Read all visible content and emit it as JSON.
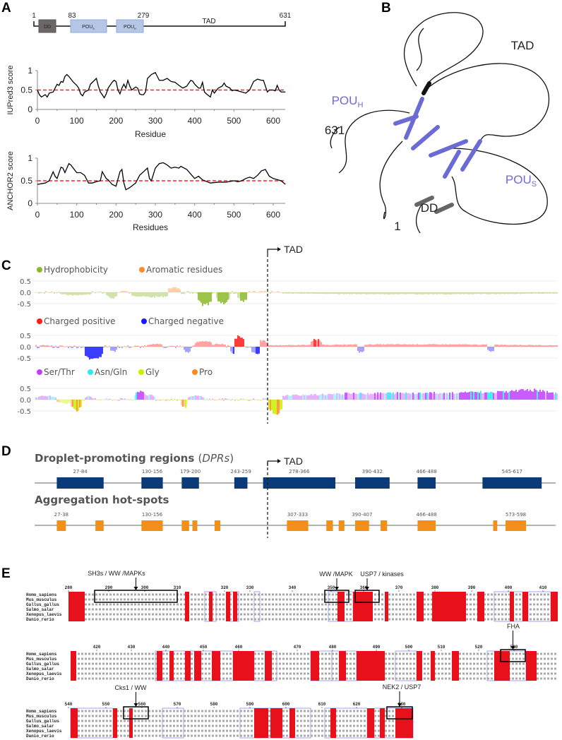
{
  "panels": {
    "A": "A",
    "B": "B",
    "C": "C",
    "D": "D",
    "E": "E"
  },
  "domain_map": {
    "positions": {
      "start": "1",
      "pous_start": "83",
      "pouh_end": "279",
      "end": "631"
    },
    "dd": "DD",
    "pous": {
      "main": "POU",
      "sub": "S"
    },
    "pouh": {
      "main": "POU",
      "sub": "H"
    },
    "tad": "TAD",
    "colors": {
      "dd": "#6b6767",
      "pou": "#b4c7e7"
    }
  },
  "chart_data": [
    {
      "type": "line",
      "ylabel": "IUPred3 score",
      "xlabel": "Residue",
      "xlim": [
        0,
        631
      ],
      "ylim": [
        0,
        1
      ],
      "xticks": [
        "0",
        "100",
        "200",
        "300",
        "400",
        "500",
        "600"
      ],
      "yticks": [
        "1",
        "0.5",
        "0"
      ],
      "threshold": 0.5,
      "threshold_color": "#ff2020",
      "x": [
        0,
        5,
        10,
        20,
        25,
        30,
        40,
        50,
        55,
        60,
        65,
        70,
        75,
        80,
        90,
        100,
        105,
        110,
        115,
        120,
        130,
        135,
        140,
        150,
        155,
        160,
        165,
        170,
        175,
        180,
        190,
        195,
        200,
        205,
        210,
        215,
        220,
        225,
        230,
        235,
        240,
        250,
        255,
        260,
        265,
        270,
        275,
        280,
        290,
        300,
        305,
        310,
        320,
        330,
        340,
        350,
        360,
        370,
        380,
        390,
        395,
        400,
        410,
        415,
        420,
        425,
        430,
        440,
        445,
        450,
        460,
        470,
        475,
        480,
        490,
        495,
        500,
        510,
        520,
        530,
        540,
        550,
        560,
        570,
        575,
        580,
        585,
        590,
        600,
        605,
        610,
        615,
        620,
        631
      ],
      "y": [
        0.5,
        0.38,
        0.32,
        0.38,
        0.32,
        0.42,
        0.45,
        0.65,
        0.62,
        0.72,
        0.7,
        0.85,
        0.9,
        0.85,
        0.72,
        0.62,
        0.55,
        0.4,
        0.35,
        0.45,
        0.5,
        0.65,
        0.7,
        0.8,
        0.6,
        0.45,
        0.38,
        0.3,
        0.4,
        0.55,
        0.7,
        0.75,
        0.72,
        0.5,
        0.4,
        0.55,
        0.65,
        0.55,
        0.75,
        0.6,
        0.5,
        0.58,
        0.55,
        0.4,
        0.38,
        0.38,
        0.45,
        0.8,
        0.9,
        0.95,
        0.85,
        0.75,
        0.75,
        0.8,
        0.72,
        0.7,
        0.62,
        0.55,
        0.6,
        0.75,
        0.73,
        0.65,
        0.55,
        0.55,
        0.7,
        0.45,
        0.4,
        0.32,
        0.5,
        0.42,
        0.55,
        0.6,
        0.68,
        0.6,
        0.55,
        0.48,
        0.5,
        0.48,
        0.45,
        0.42,
        0.5,
        0.72,
        0.78,
        0.75,
        0.75,
        0.6,
        0.45,
        0.5,
        0.5,
        0.48,
        0.62,
        0.5,
        0.45,
        0.45
      ]
    },
    {
      "type": "line",
      "ylabel": "ANCHOR2 score",
      "xlabel": "Residues",
      "xlim": [
        0,
        631
      ],
      "ylim": [
        0,
        1
      ],
      "xticks": [
        "0",
        "100",
        "200",
        "300",
        "400",
        "500",
        "600"
      ],
      "yticks": [
        "1",
        "0.5",
        "0"
      ],
      "threshold": 0.5,
      "threshold_color": "#ff2020",
      "x": [
        0,
        20,
        30,
        40,
        45,
        50,
        60,
        65,
        70,
        80,
        85,
        100,
        110,
        120,
        130,
        140,
        150,
        160,
        165,
        175,
        180,
        190,
        200,
        210,
        215,
        220,
        225,
        235,
        250,
        260,
        270,
        280,
        285,
        290,
        300,
        310,
        320,
        330,
        340,
        350,
        360,
        365,
        380,
        400,
        410,
        420,
        440,
        460,
        480,
        500,
        510,
        520,
        530,
        540,
        550,
        560,
        570,
        580,
        590,
        600,
        620,
        631
      ],
      "y": [
        0.42,
        0.45,
        0.5,
        0.7,
        0.6,
        0.55,
        0.8,
        0.78,
        0.68,
        0.88,
        0.85,
        0.68,
        0.68,
        0.62,
        0.45,
        0.45,
        0.48,
        0.5,
        0.7,
        0.55,
        0.52,
        0.42,
        0.38,
        0.7,
        0.75,
        0.45,
        0.3,
        0.35,
        0.45,
        0.62,
        0.7,
        0.78,
        0.55,
        0.5,
        0.78,
        0.88,
        0.9,
        0.85,
        0.78,
        0.8,
        0.78,
        0.82,
        0.75,
        0.55,
        0.6,
        0.52,
        0.45,
        0.47,
        0.47,
        0.5,
        0.48,
        0.5,
        0.55,
        0.58,
        0.55,
        0.62,
        0.72,
        0.75,
        0.6,
        0.55,
        0.5,
        0.42
      ]
    },
    {
      "type": "bar",
      "tracks": [
        {
          "legend": [
            {
              "name": "Hydrophobicity",
              "color": "#8cba2a"
            },
            {
              "name": "Aromatic residues",
              "color": "#ff8a2a"
            }
          ],
          "yticks": [
            "0.5",
            "0.0",
            "-0.5"
          ]
        },
        {
          "legend": [
            {
              "name": "Charged positive",
              "color": "#ff1a1a"
            },
            {
              "name": "Charged negative",
              "color": "#1a1aff"
            }
          ],
          "yticks": [
            "0.5",
            "0.0",
            "-0.5"
          ]
        },
        {
          "legend": [
            {
              "name": "Ser/Thr",
              "color": "#c040ff"
            },
            {
              "name": "Asn/Gln",
              "color": "#30e8f0"
            },
            {
              "name": "Gly",
              "color": "#c8f000"
            },
            {
              "name": "Pro",
              "color": "#ff8a20"
            }
          ],
          "yticks": [
            "0.5",
            "0.0",
            "-0.5"
          ]
        }
      ],
      "tad_label": "TAD"
    },
    {
      "type": "range",
      "dpr_title": "Droplet-promoting regions ",
      "dpr_title_italic": "DPRs",
      "dpr_color": "#0b3a78",
      "dprs": [
        {
          "label": "27-84",
          "start": 27,
          "end": 84
        },
        {
          "label": "130-156",
          "start": 130,
          "end": 156
        },
        {
          "label": "179-200",
          "start": 179,
          "end": 200
        },
        {
          "label": "243-259",
          "start": 243,
          "end": 259
        },
        {
          "label": "278-366",
          "start": 278,
          "end": 366
        },
        {
          "label": "390-432",
          "start": 390,
          "end": 432
        },
        {
          "label": "466-488",
          "start": 466,
          "end": 488
        },
        {
          "label": "545-617",
          "start": 545,
          "end": 617
        }
      ],
      "agg_title": "Aggregation hot-spots",
      "agg_color": "#f0901a",
      "hotspots": [
        {
          "label": "27-38",
          "start": 27,
          "end": 38
        },
        {
          "start": 74,
          "end": 84
        },
        {
          "label": "130-156",
          "start": 130,
          "end": 156
        },
        {
          "start": 179,
          "end": 188
        },
        {
          "start": 192,
          "end": 198
        },
        {
          "start": 219,
          "end": 226
        },
        {
          "label": "307-333",
          "start": 307,
          "end": 333
        },
        {
          "start": 355,
          "end": 363
        },
        {
          "start": 370,
          "end": 377
        },
        {
          "label": "390-407",
          "start": 390,
          "end": 407
        },
        {
          "start": 421,
          "end": 429
        },
        {
          "label": "466-488",
          "start": 466,
          "end": 488
        },
        {
          "start": 558,
          "end": 563
        },
        {
          "label": "573-598",
          "start": 573,
          "end": 598
        }
      ],
      "tad_label": "TAD"
    }
  ],
  "structure": {
    "tad": "TAD",
    "pouh": {
      "main": "POU",
      "sub": "H"
    },
    "pous": {
      "main": "POU",
      "sub": "S"
    },
    "dd": "DD",
    "n_term": "1",
    "c_term": "631",
    "helix_color": "#6b6bd6"
  },
  "alignment": {
    "species": [
      "Homo_sapiens",
      "Mus_musculus",
      "Gallus_gallus",
      "Salmo_salar",
      "Xenopus_laevis",
      "Danio_rerio"
    ],
    "blocks": [
      {
        "ticks": [
          "280",
          "290",
          "300",
          "310",
          "320",
          "330",
          "340",
          "350",
          "360",
          "370",
          "380",
          "390",
          "400",
          "410"
        ],
        "motifs": [
          {
            "label": "SH3s / WW /MAPKs"
          },
          {
            "label": "WW /MAPK"
          },
          {
            "label": "USP7 / kinases"
          }
        ]
      },
      {
        "ticks": [
          "420",
          "430",
          "440",
          "450",
          "460",
          "470",
          "480",
          "490",
          "500",
          "510",
          "520",
          "530"
        ],
        "motifs": [
          {
            "label": "FHA"
          }
        ]
      },
      {
        "ticks": [
          "540",
          "550",
          "560",
          "570",
          "580",
          "590",
          "600",
          "610",
          "620",
          "630"
        ],
        "motifs": [
          {
            "label": "Cks1 / WW"
          },
          {
            "label": "NEK2 / USP7"
          }
        ]
      }
    ],
    "conserved_color": "#e8101a",
    "similar_color": "#8a8af0"
  }
}
